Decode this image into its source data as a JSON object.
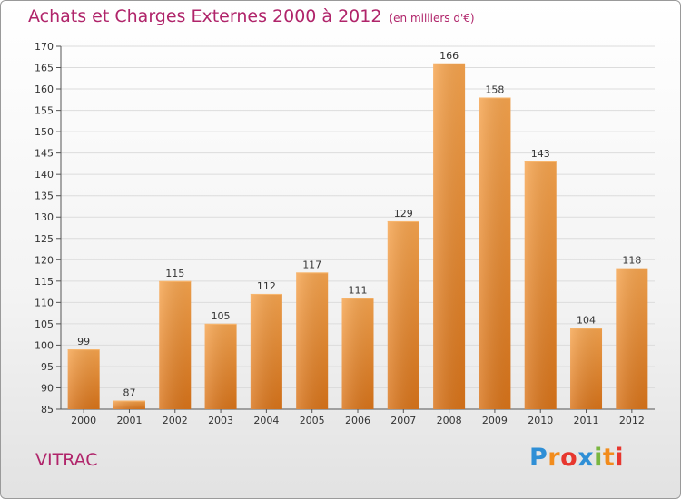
{
  "header": {
    "title": "Achats et Charges Externes 2000 à 2012",
    "unit": "(en milliers d'€)"
  },
  "footer": {
    "city": "VITRAC"
  },
  "logo": {
    "letters": [
      "P",
      "r",
      "o",
      "x",
      "i",
      "t",
      "i"
    ],
    "colors": [
      "#2f8fd6",
      "#f28c1c",
      "#e7372f",
      "#2f8fd6",
      "#7ab640",
      "#f28c1c",
      "#e7372f"
    ]
  },
  "colors": {
    "bar": "#f09a3e",
    "title": "#b0246a"
  },
  "chart_data": {
    "type": "bar",
    "title": "Achats et Charges Externes 2000 à 2012",
    "categories": [
      "2000",
      "2001",
      "2002",
      "2003",
      "2004",
      "2005",
      "2006",
      "2007",
      "2008",
      "2009",
      "2010",
      "2011",
      "2012"
    ],
    "values": [
      99,
      87,
      115,
      105,
      112,
      117,
      111,
      129,
      166,
      158,
      143,
      104,
      118
    ],
    "ylim": [
      85,
      170
    ],
    "yticks": [
      85,
      90,
      95,
      100,
      105,
      110,
      115,
      120,
      125,
      130,
      135,
      140,
      145,
      150,
      155,
      160,
      165,
      170
    ],
    "grid": true,
    "xlabel": "",
    "ylabel": ""
  }
}
